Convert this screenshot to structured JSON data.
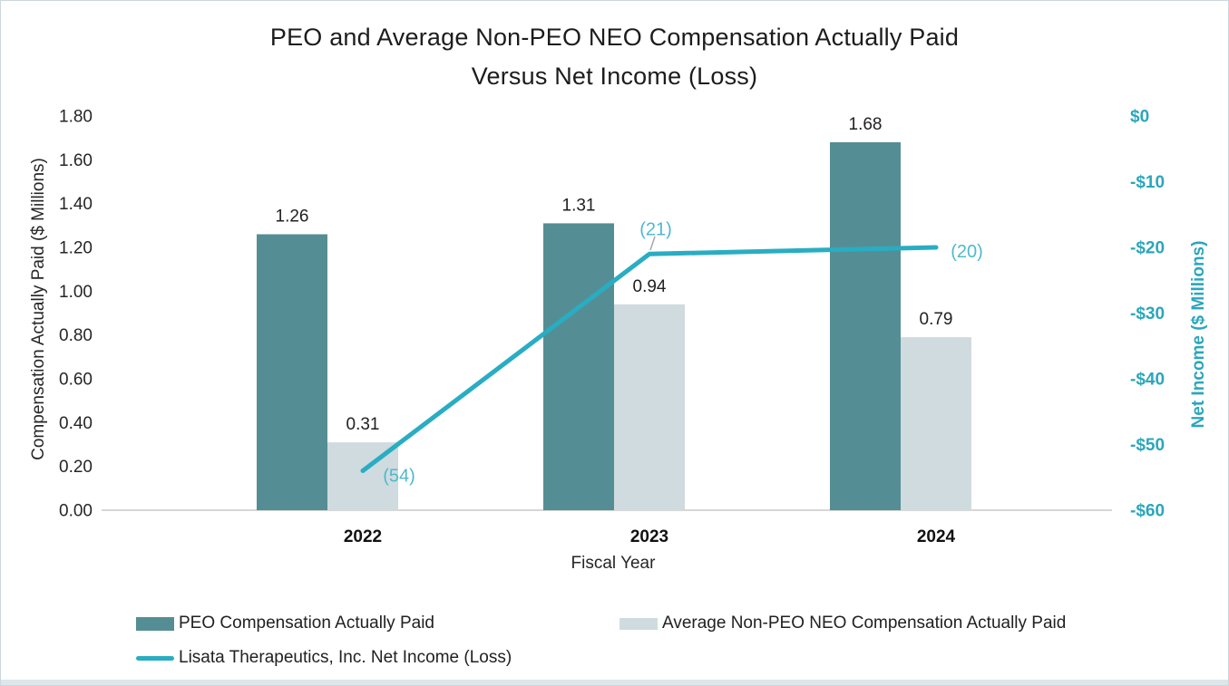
{
  "page": {
    "title_line1": "PEO and Average Non-PEO NEO Compensation Actually Paid",
    "title_line2": "Versus Net Income (Loss)"
  },
  "chart_data": {
    "type": "combo",
    "categories": [
      "2022",
      "2023",
      "2024"
    ],
    "series": [
      {
        "name": "PEO Compensation Actually Paid",
        "type": "bar",
        "axis": "left",
        "values": [
          1.26,
          1.31,
          1.68
        ],
        "color": "#548E94"
      },
      {
        "name": "Average Non-PEO NEO Compensation Actually Paid",
        "type": "bar",
        "axis": "left",
        "values": [
          0.31,
          0.94,
          0.79
        ],
        "color": "#CFDBDF"
      },
      {
        "name": "Lisata Therapeutics, Inc. Net Income (Loss)",
        "type": "line",
        "axis": "right",
        "values": [
          -54,
          -21,
          -20
        ],
        "labels": [
          "(54)",
          "(21)",
          "(20)"
        ],
        "color": "#29ADC2",
        "label_color": "#4FB9CC"
      }
    ],
    "left_axis": {
      "title": "Compensation Actually Paid ($ Millions)",
      "min": 0.0,
      "max": 1.8,
      "step": 0.2
    },
    "right_axis": {
      "title": "Net Income ($ Millions)",
      "min": -60,
      "max": 0,
      "step": 10,
      "color": "#2BA6BC"
    },
    "x_axis": {
      "title": "Fiscal Year"
    },
    "axis_line_color": "#D6D6D6",
    "leader_line_color": "#A6A6A6",
    "grid": false,
    "legend_position": "bottom"
  }
}
